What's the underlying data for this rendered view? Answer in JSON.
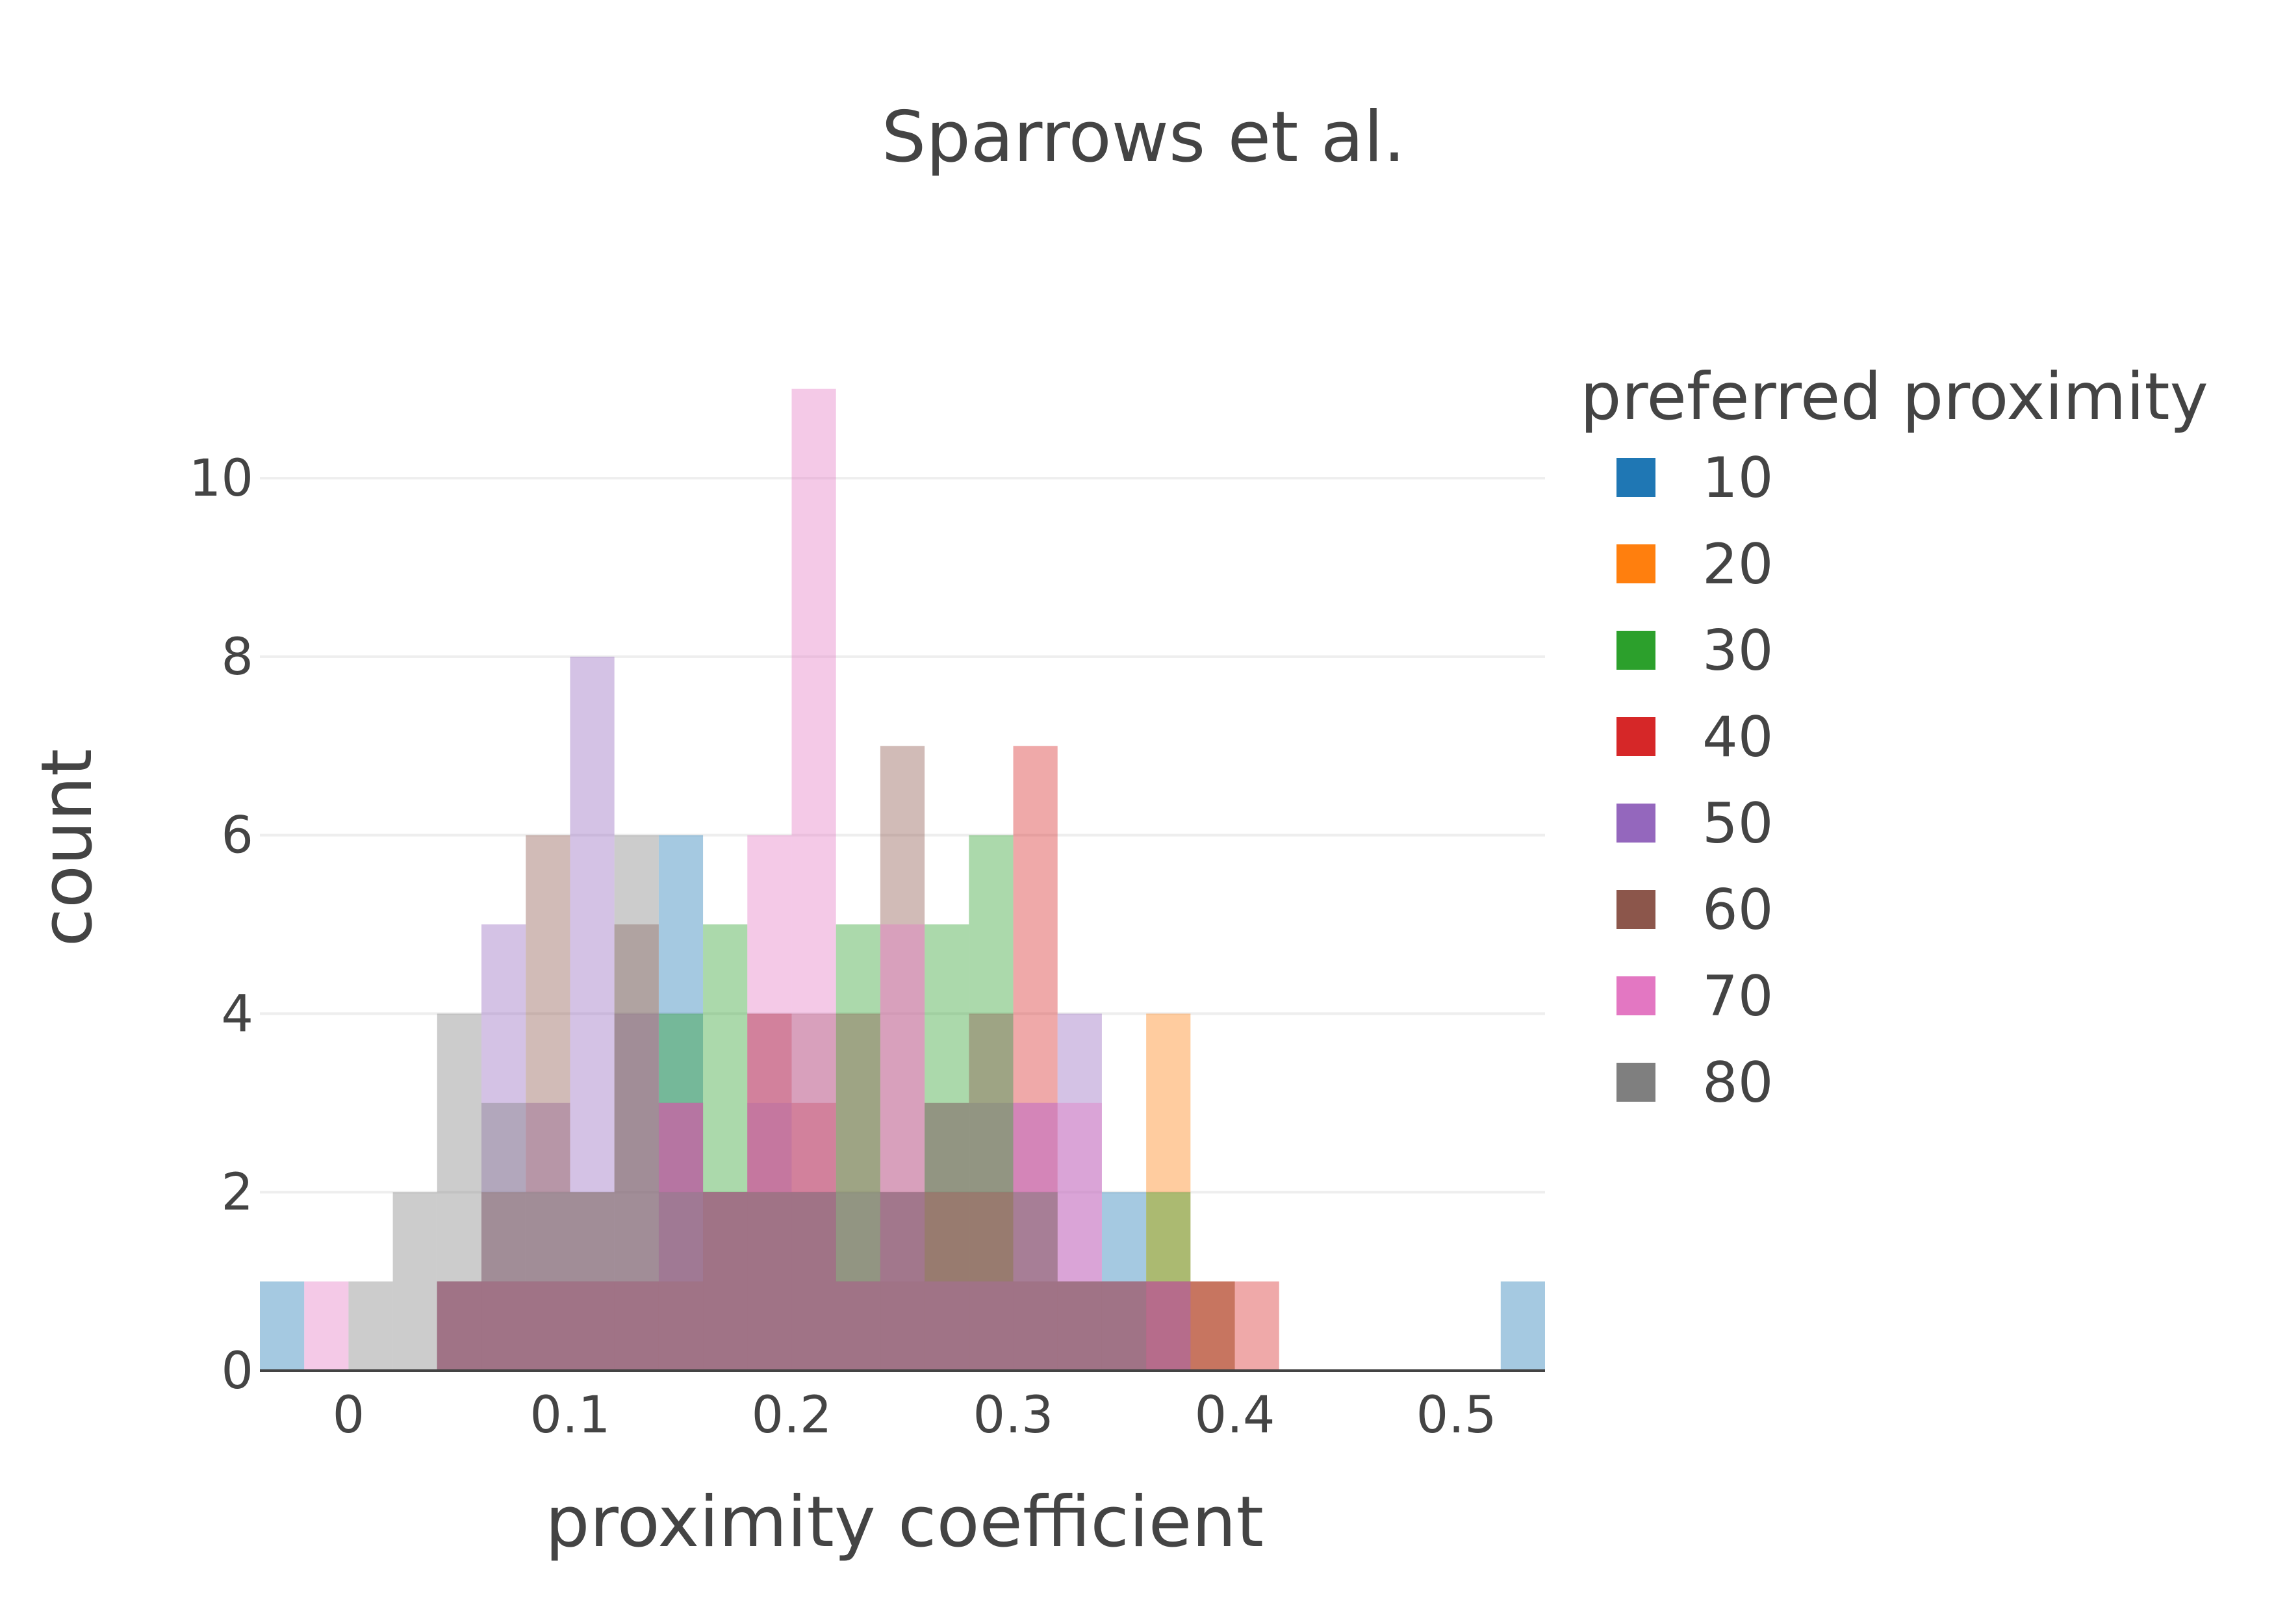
{
  "chart_data": {
    "type": "bar",
    "title": "Sparrows et al.",
    "xlabel": "proximity coefficient",
    "ylabel": "count",
    "bin_width": 0.02,
    "x": [
      -0.03,
      -0.01,
      0.01,
      0.03,
      0.05,
      0.07,
      0.09,
      0.11,
      0.13,
      0.15,
      0.17,
      0.19,
      0.21,
      0.23,
      0.25,
      0.27,
      0.29,
      0.31,
      0.33,
      0.35,
      0.37,
      0.39,
      0.41,
      0.43,
      0.45,
      0.47,
      0.49,
      0.51,
      0.53
    ],
    "xlim": [
      -0.04,
      0.54
    ],
    "ylim": [
      0,
      11.5
    ],
    "xticks": [
      0,
      0.1,
      0.2,
      0.3,
      0.4,
      0.5
    ],
    "xtick_labels": [
      "0",
      "0.1",
      "0.2",
      "0.3",
      "0.4",
      "0.5"
    ],
    "yticks": [
      0,
      2,
      4,
      6,
      8,
      10
    ],
    "ytick_labels": [
      "0",
      "2",
      "4",
      "6",
      "8",
      "10"
    ],
    "barmode": "overlay",
    "opacity": 0.4,
    "grid": true,
    "legend": {
      "title": "preferred proximity",
      "position": "right"
    },
    "series": [
      {
        "name": "10",
        "color": "#1f77b4",
        "values": [
          1,
          0,
          0,
          0,
          1,
          1,
          1,
          1,
          1,
          6,
          2,
          2,
          2,
          1,
          1,
          1,
          1,
          1,
          1,
          2,
          1,
          0,
          0,
          0,
          0,
          0,
          0,
          0,
          1
        ]
      },
      {
        "name": "20",
        "color": "#ff7f0e",
        "values": [
          0,
          0,
          0,
          0,
          1,
          1,
          1,
          1,
          1,
          1,
          2,
          2,
          2,
          1,
          1,
          1,
          1,
          1,
          1,
          1,
          4,
          1,
          0,
          0,
          0,
          0,
          0,
          0,
          0
        ]
      },
      {
        "name": "30",
        "color": "#2ca02c",
        "values": [
          0,
          0,
          0,
          0,
          1,
          1,
          1,
          1,
          1,
          4,
          5,
          2,
          2,
          5,
          2,
          5,
          6,
          2,
          1,
          1,
          2,
          0,
          0,
          0,
          0,
          0,
          0,
          0,
          0
        ]
      },
      {
        "name": "40",
        "color": "#d62728",
        "values": [
          0,
          0,
          0,
          0,
          1,
          1,
          1,
          1,
          1,
          3,
          2,
          4,
          3,
          1,
          2,
          2,
          2,
          7,
          1,
          1,
          1,
          1,
          1,
          0,
          0,
          0,
          0,
          0,
          0
        ]
      },
      {
        "name": "50",
        "color": "#9467bd",
        "values": [
          0,
          0,
          0,
          0,
          1,
          5,
          3,
          8,
          4,
          3,
          2,
          3,
          2,
          1,
          2,
          1,
          1,
          3,
          4,
          1,
          1,
          0,
          0,
          0,
          0,
          0,
          0,
          0,
          0
        ]
      },
      {
        "name": "60",
        "color": "#8c564b",
        "values": [
          0,
          0,
          0,
          0,
          1,
          2,
          6,
          2,
          5,
          1,
          2,
          4,
          4,
          4,
          7,
          3,
          4,
          1,
          1,
          1,
          1,
          1,
          0,
          0,
          0,
          0,
          0,
          0,
          0
        ]
      },
      {
        "name": "70",
        "color": "#e377c2",
        "values": [
          0,
          1,
          0,
          0,
          1,
          1,
          1,
          1,
          1,
          3,
          2,
          6,
          11,
          1,
          5,
          1,
          1,
          3,
          3,
          1,
          1,
          0,
          0,
          0,
          0,
          0,
          0,
          0,
          0
        ]
      },
      {
        "name": "80",
        "color": "#7f7f7f",
        "values": [
          0,
          0,
          1,
          2,
          4,
          3,
          2,
          2,
          6,
          2,
          2,
          2,
          2,
          2,
          2,
          3,
          3,
          2,
          1,
          1,
          0,
          0,
          0,
          0,
          0,
          0,
          0,
          0,
          0
        ]
      }
    ]
  }
}
